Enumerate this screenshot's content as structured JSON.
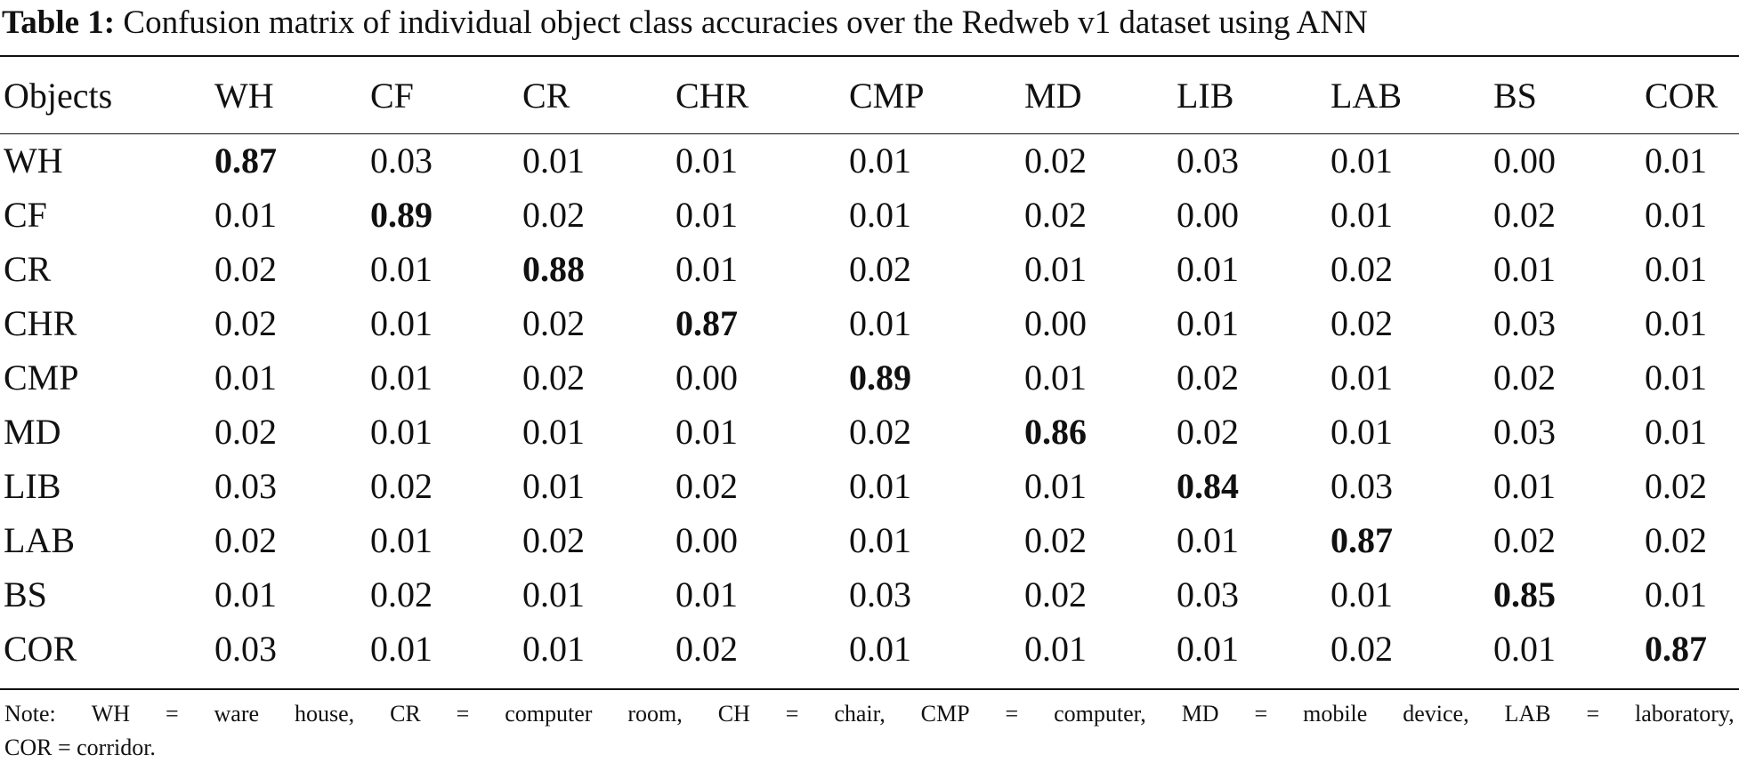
{
  "caption": {
    "label": "Table 1:",
    "text": "Confusion matrix of individual object class accuracies over the Redweb v1 dataset using ANN"
  },
  "table": {
    "headers": [
      "Objects",
      "WH",
      "CF",
      "CR",
      "CHR",
      "CMP",
      "MD",
      "LIB",
      "LAB",
      "BS",
      "COR"
    ],
    "rows": [
      {
        "label": "WH",
        "values": [
          "0.87",
          "0.03",
          "0.01",
          "0.01",
          "0.01",
          "0.02",
          "0.03",
          "0.01",
          "0.00",
          "0.01"
        ],
        "bold_index": 0
      },
      {
        "label": "CF",
        "values": [
          "0.01",
          "0.89",
          "0.02",
          "0.01",
          "0.01",
          "0.02",
          "0.00",
          "0.01",
          "0.02",
          "0.01"
        ],
        "bold_index": 1
      },
      {
        "label": "CR",
        "values": [
          "0.02",
          "0.01",
          "0.88",
          "0.01",
          "0.02",
          "0.01",
          "0.01",
          "0.02",
          "0.01",
          "0.01"
        ],
        "bold_index": 2
      },
      {
        "label": "CHR",
        "values": [
          "0.02",
          "0.01",
          "0.02",
          "0.87",
          "0.01",
          "0.00",
          "0.01",
          "0.02",
          "0.03",
          "0.01"
        ],
        "bold_index": 3
      },
      {
        "label": "CMP",
        "values": [
          "0.01",
          "0.01",
          "0.02",
          "0.00",
          "0.89",
          "0.01",
          "0.02",
          "0.01",
          "0.02",
          "0.01"
        ],
        "bold_index": 4
      },
      {
        "label": "MD",
        "values": [
          "0.02",
          "0.01",
          "0.01",
          "0.01",
          "0.02",
          "0.86",
          "0.02",
          "0.01",
          "0.03",
          "0.01"
        ],
        "bold_index": 5
      },
      {
        "label": "LIB",
        "values": [
          "0.03",
          "0.02",
          "0.01",
          "0.02",
          "0.01",
          "0.01",
          "0.84",
          "0.03",
          "0.01",
          "0.02"
        ],
        "bold_index": 6
      },
      {
        "label": "LAB",
        "values": [
          "0.02",
          "0.01",
          "0.02",
          "0.00",
          "0.01",
          "0.02",
          "0.01",
          "0.87",
          "0.02",
          "0.02"
        ],
        "bold_index": 7
      },
      {
        "label": "BS",
        "values": [
          "0.01",
          "0.02",
          "0.01",
          "0.01",
          "0.03",
          "0.02",
          "0.03",
          "0.01",
          "0.85",
          "0.01"
        ],
        "bold_index": 8
      },
      {
        "label": "COR",
        "values": [
          "0.03",
          "0.01",
          "0.01",
          "0.02",
          "0.01",
          "0.01",
          "0.01",
          "0.02",
          "0.01",
          "0.87"
        ],
        "bold_index": 9
      }
    ]
  },
  "note": {
    "line1_parts": [
      "Note:",
      "WH",
      "=",
      "ware",
      "house,",
      "CR",
      "=",
      "computer",
      "room,",
      "CH",
      "=",
      "chair,",
      "CMP",
      "=",
      "computer,",
      "MD",
      "=",
      "mobile",
      "device,",
      "LAB",
      "=",
      "laboratory,"
    ],
    "line2": "COR = corridor."
  }
}
